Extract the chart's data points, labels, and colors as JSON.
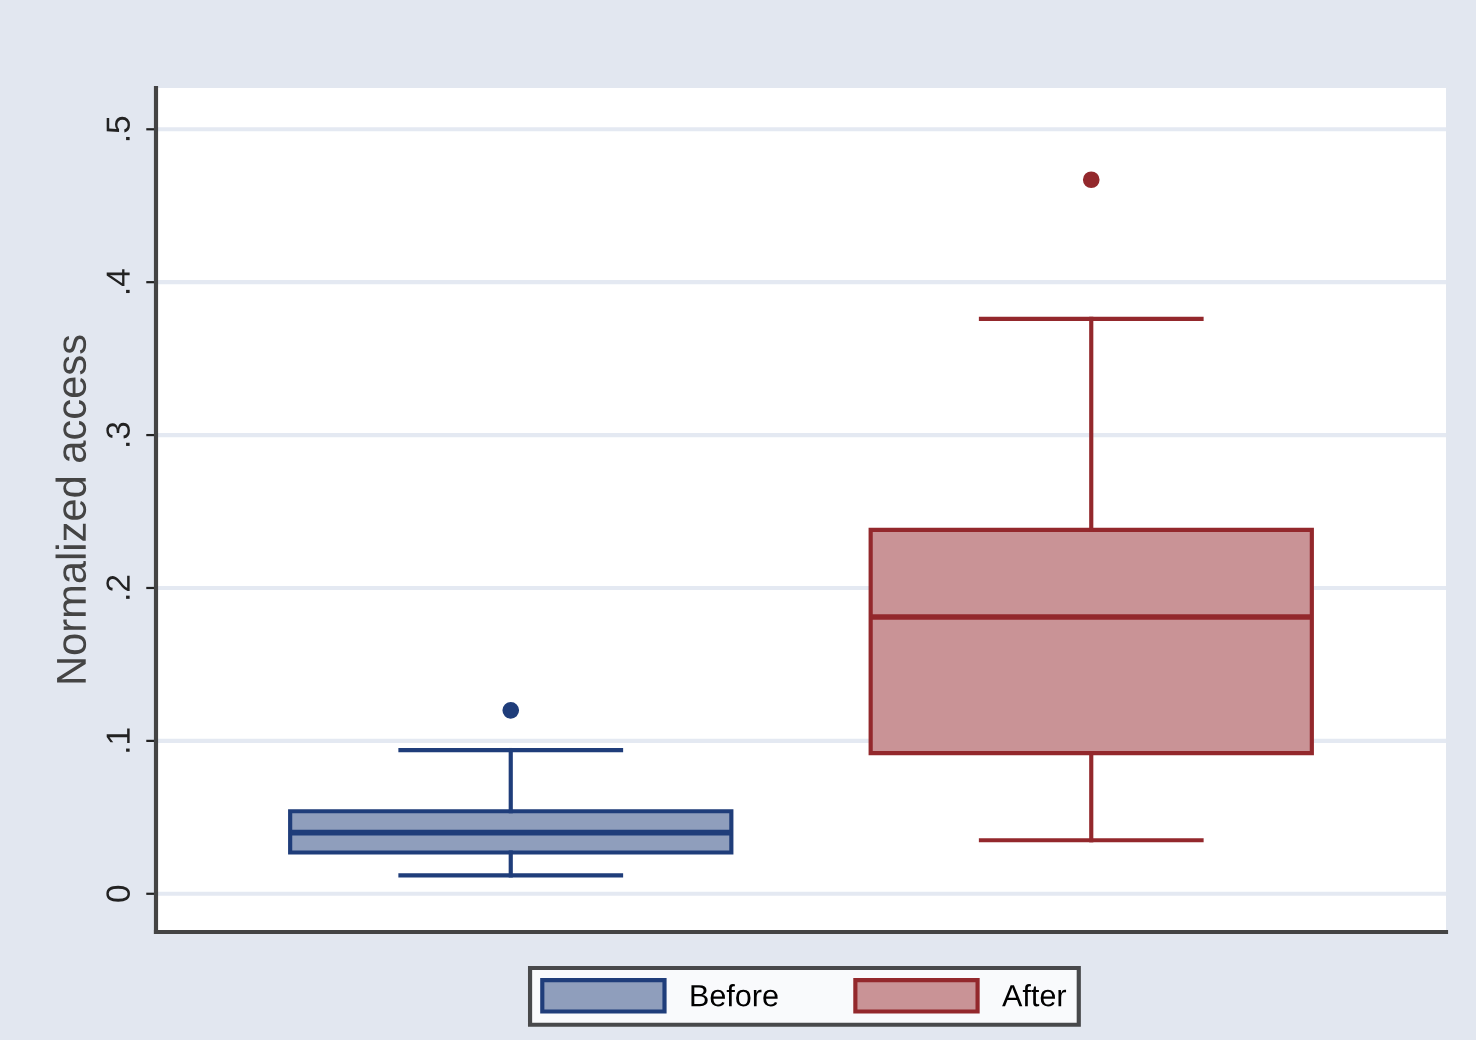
{
  "chart_data": {
    "type": "box",
    "ylabel": "Normalized access",
    "categories": [
      null
    ],
    "series": [
      {
        "name": "Before",
        "color": "#1f3d7a",
        "boxes": [
          {
            "low": 0.012,
            "q1": 0.027,
            "median": 0.04,
            "q3": 0.054,
            "high": 0.094,
            "outliers": [
              0.12
            ]
          }
        ]
      },
      {
        "name": "After",
        "color": "#93282c",
        "boxes": [
          {
            "low": 0.035,
            "q1": 0.092,
            "median": 0.181,
            "q3": 0.238,
            "high": 0.376,
            "outliers": [
              0.467
            ]
          }
        ]
      }
    ],
    "ylim": [
      -0.025,
      0.527
    ],
    "yticks": [
      0,
      {
        "value": 0.1,
        "label": ".1"
      },
      {
        "value": 0.2,
        "label": ".2"
      },
      {
        "value": 0.3,
        "label": ".3"
      },
      {
        "value": 0.4,
        "label": ".4"
      },
      {
        "value": 0.5,
        "label": ".5"
      }
    ],
    "grid": "y",
    "legend": "bottom"
  }
}
